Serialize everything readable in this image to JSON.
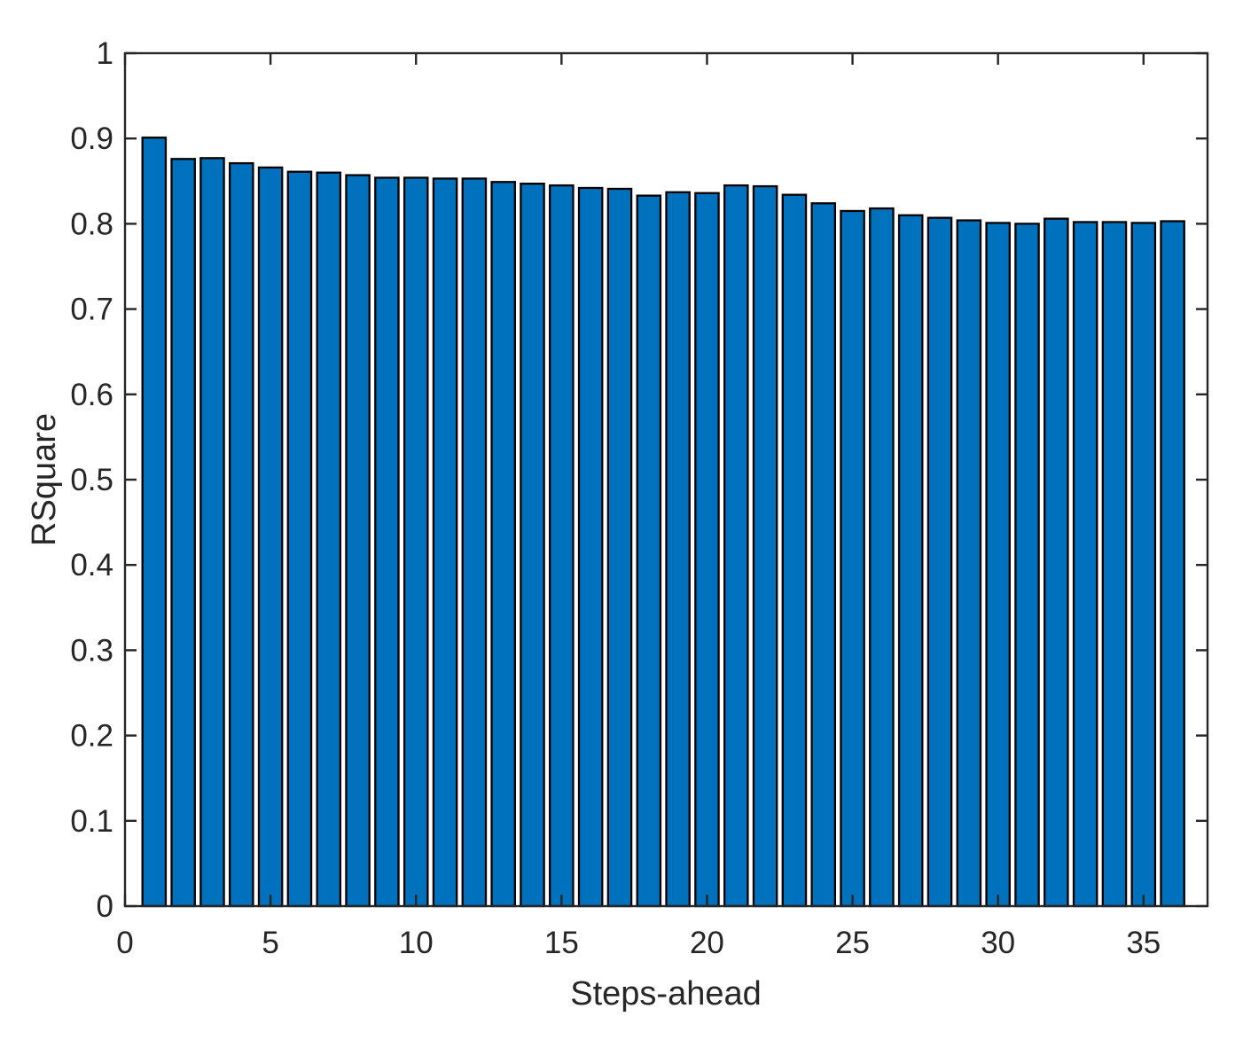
{
  "chart_data": {
    "type": "bar",
    "title": "",
    "xlabel": "Steps-ahead",
    "ylabel": "RSquare",
    "x": [
      1,
      2,
      3,
      4,
      5,
      6,
      7,
      8,
      9,
      10,
      11,
      12,
      13,
      14,
      15,
      16,
      17,
      18,
      19,
      20,
      21,
      22,
      23,
      24,
      25,
      26,
      27,
      28,
      29,
      30,
      31,
      32,
      33,
      34,
      35,
      36
    ],
    "values": [
      0.901,
      0.876,
      0.877,
      0.871,
      0.866,
      0.861,
      0.86,
      0.857,
      0.854,
      0.854,
      0.853,
      0.853,
      0.849,
      0.847,
      0.845,
      0.842,
      0.841,
      0.833,
      0.837,
      0.836,
      0.845,
      0.844,
      0.834,
      0.824,
      0.815,
      0.818,
      0.81,
      0.807,
      0.804,
      0.801,
      0.8,
      0.806,
      0.802,
      0.802,
      0.801,
      0.803
    ],
    "xlim": [
      0,
      37.2
    ],
    "ylim": [
      0,
      1
    ],
    "xticks": [
      0,
      5,
      10,
      15,
      20,
      25,
      30,
      35
    ],
    "xtick_labels": [
      "0",
      "5",
      "10",
      "15",
      "20",
      "25",
      "30",
      "35"
    ],
    "yticks": [
      0,
      0.1,
      0.2,
      0.3,
      0.4,
      0.5,
      0.6,
      0.7,
      0.8,
      0.9,
      1
    ],
    "ytick_labels": [
      "0",
      "0.1",
      "0.2",
      "0.3",
      "0.4",
      "0.5",
      "0.6",
      "0.7",
      "0.8",
      "0.9",
      "1"
    ],
    "bar_width_units": 0.8,
    "bar_color": "#0072BD",
    "bar_edge_color": "#000000",
    "axis_color": "#262626",
    "background_color": "#ffffff",
    "grid": false,
    "legend_position": "none",
    "box": true,
    "tick_direction": "in"
  }
}
